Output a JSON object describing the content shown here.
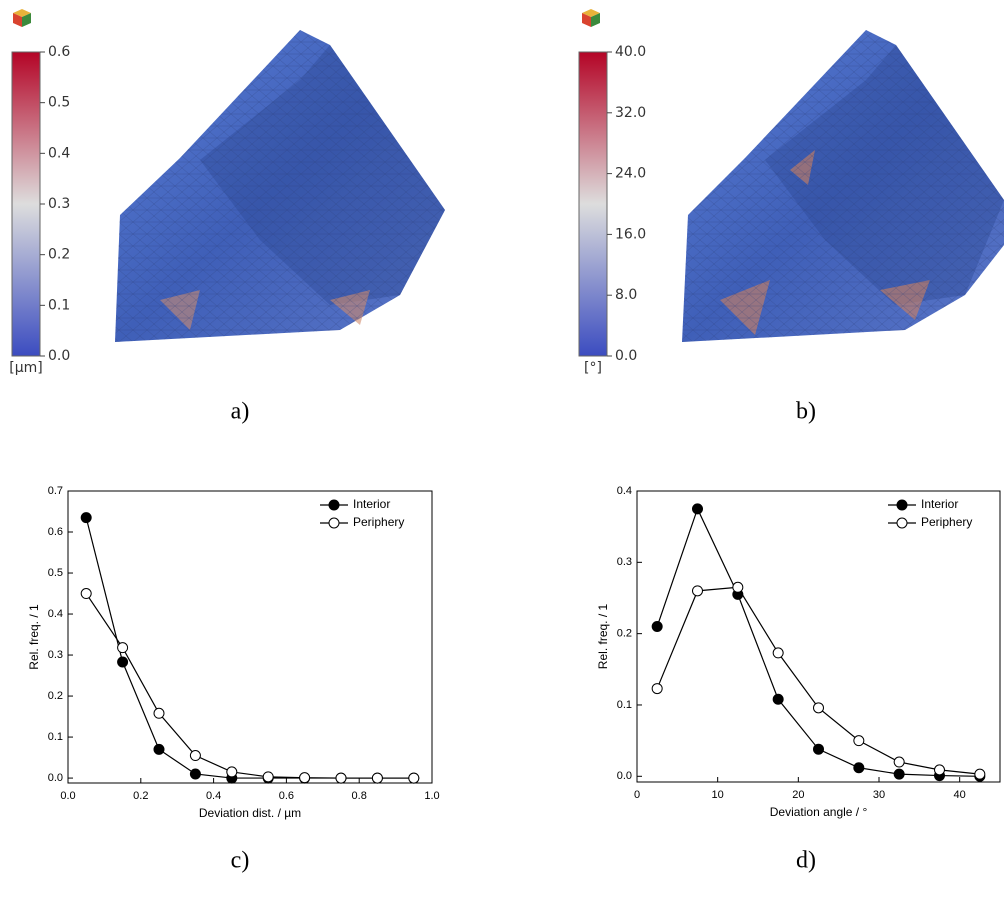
{
  "chart_data": [
    {
      "type": "line",
      "xlabel": "Deviation dist. / µm",
      "ylabel": "Rel. freq. / 1",
      "x": [
        0.05,
        0.15,
        0.25,
        0.35,
        0.45,
        0.55,
        0.65,
        0.75,
        0.85,
        0.95
      ],
      "series": [
        {
          "name": "Interior",
          "color": "#000000",
          "marker_face": "#000000",
          "values": [
            0.635,
            0.283,
            0.07,
            0.01,
            0.0,
            0.0,
            0.0,
            0.0,
            0.0,
            0.0
          ]
        },
        {
          "name": "Periphery",
          "color": "#000000",
          "marker_face": "#ffffff",
          "values": [
            0.45,
            0.318,
            0.158,
            0.055,
            0.015,
            0.003,
            0.001,
            0.0,
            0.0,
            0.0
          ]
        }
      ],
      "xlim": [
        0,
        1
      ],
      "xticks": [
        {
          "value": 0,
          "label": "0.0"
        },
        0.2,
        0.4,
        0.6,
        0.8,
        {
          "value": 1,
          "label": "1.0"
        }
      ],
      "ylim": [
        -0.012,
        0.7
      ],
      "yticks": [
        {
          "value": 0,
          "label": "0.0"
        },
        0.1,
        0.2,
        0.3,
        0.4,
        0.5,
        0.6,
        0.7
      ],
      "legend": "top-right"
    },
    {
      "type": "line",
      "xlabel": "Deviation angle / °",
      "ylabel": "Rel. freq. / 1",
      "x": [
        2.5,
        7.5,
        12.5,
        17.5,
        22.5,
        27.5,
        32.5,
        37.5,
        42.5
      ],
      "series": [
        {
          "name": "Interior",
          "color": "#000000",
          "marker_face": "#000000",
          "values": [
            0.21,
            0.375,
            0.255,
            0.108,
            0.038,
            0.012,
            0.003,
            0.001,
            0.0
          ]
        },
        {
          "name": "Periphery",
          "color": "#000000",
          "marker_face": "#ffffff",
          "values": [
            0.123,
            0.26,
            0.265,
            0.173,
            0.096,
            0.05,
            0.02,
            0.009,
            0.003
          ]
        }
      ],
      "xlim": [
        0,
        45
      ],
      "xticks": [
        0,
        10,
        20,
        30,
        40
      ],
      "ylim": [
        -0.008,
        0.4
      ],
      "yticks": [
        {
          "value": 0,
          "label": "0.0"
        },
        0.1,
        0.2,
        0.3,
        0.4
      ],
      "legend": "top-right"
    }
  ],
  "colorbars": [
    {
      "unit": "[µm]",
      "lim": [
        0,
        0.6
      ],
      "colors": [
        "#3b4cc0",
        "#dddddd",
        "#b40426"
      ],
      "ticks": [
        {
          "value": 0,
          "label": "0.0"
        },
        0.1,
        0.2,
        0.3,
        0.4,
        0.5,
        0.6
      ]
    },
    {
      "unit": "[°]",
      "lim": [
        0,
        40
      ],
      "colors": [
        "#3b4cc0",
        "#dddddd",
        "#b40426"
      ],
      "ticks": [
        {
          "value": 0,
          "label": "0.0"
        },
        {
          "value": 8,
          "label": "8.0"
        },
        {
          "value": 16,
          "label": "16.0"
        },
        {
          "value": 24,
          "label": "24.0"
        },
        {
          "value": 32,
          "label": "32.0"
        },
        {
          "value": 40,
          "label": "40.0"
        }
      ]
    }
  ],
  "panels": [
    "a)",
    "b)",
    "c)",
    "d)"
  ]
}
